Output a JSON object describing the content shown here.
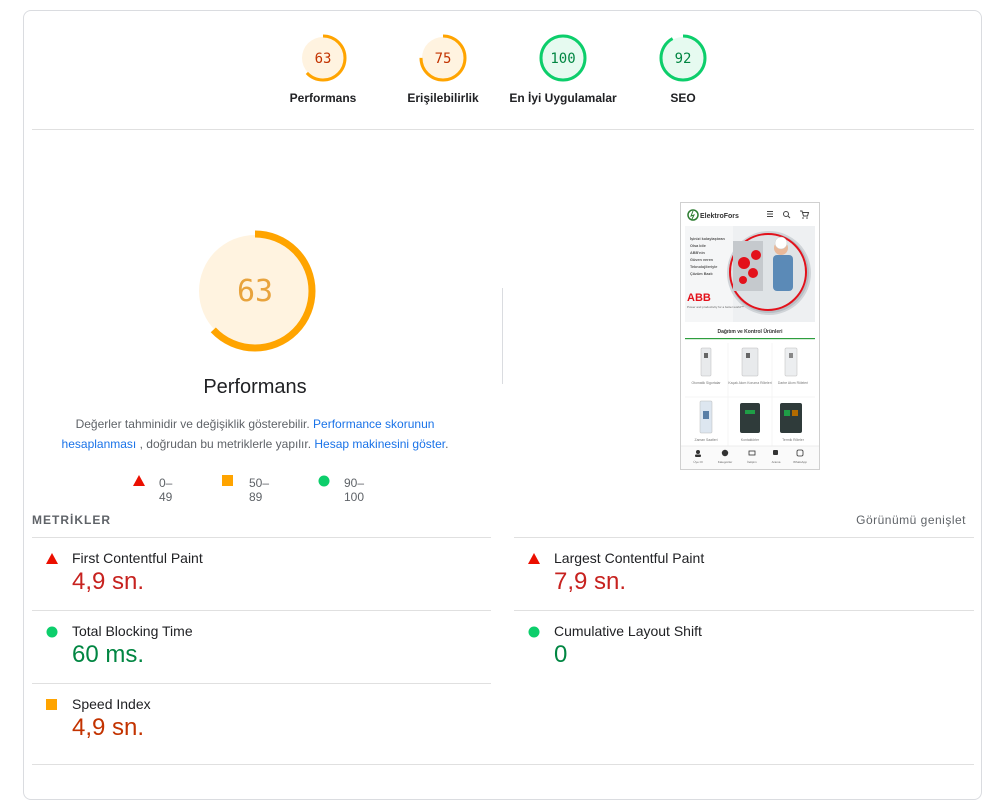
{
  "categories": [
    {
      "score": "63",
      "label": "Performans",
      "value": 63,
      "color": "#ffa400"
    },
    {
      "score": "75",
      "label": "Erişilebilirlik",
      "value": 75,
      "color": "#ffa400"
    },
    {
      "score": "100",
      "label": "En İyi Uygulamalar",
      "value": 100,
      "color": "#0cce6b"
    },
    {
      "score": "92",
      "label": "SEO",
      "value": 92,
      "color": "#0cce6b"
    }
  ],
  "performance": {
    "score": "63",
    "value": 63,
    "title": "Performans",
    "desc_text1": "Değerler tahminidir ve değişiklik gösterebilir. ",
    "desc_link1": "Performance skorunun hesaplanması",
    "desc_text2": " , doğrudan bu metriklerle yapılır. ",
    "desc_link2": "Hesap makinesini göster",
    "desc_text3": "."
  },
  "legend": {
    "fail": "0–49",
    "average": "50–89",
    "pass": "90–100"
  },
  "metrics_section": {
    "title": "METRİKLER",
    "expand_label": "Görünümü genişlet"
  },
  "metrics": [
    {
      "name": "First Contentful Paint",
      "value": "4,9 sn.",
      "status": "fail"
    },
    {
      "name": "Largest Contentful Paint",
      "value": "7,9 sn.",
      "status": "fail"
    },
    {
      "name": "Total Blocking Time",
      "value": "60 ms.",
      "status": "pass"
    },
    {
      "name": "Cumulative Layout Shift",
      "value": "0",
      "status": "pass"
    },
    {
      "name": "Speed Index",
      "value": "4,9 sn.",
      "status": "average"
    }
  ],
  "screenshot": {
    "logo_left": "ElektroFors",
    "logo_right": "",
    "hero_lines": [
      "İşinizi kolaylaştıran",
      "Olsa bile",
      "ABB'nin",
      "Güven veren",
      "Teknolojileriyle",
      "Çözüm Bazlı"
    ],
    "brand": "ABB",
    "tagline": "Power and productivity for a better world™",
    "section_title": "Dağıtım ve Kontrol Ürünleri",
    "products": [
      "Otomatik Sigortalar",
      "Kaçak Akım Koruma Röleleri",
      "Darbe Akım Röleleri",
      "Zaman Saatleri",
      "Kontaktörler",
      "Termik Röleler"
    ],
    "bottom_nav": [
      "Üye Ol",
      "Kategoriler",
      "İletişim",
      "Arama",
      "WhatsApp"
    ]
  },
  "colors": {
    "fail": "#eb0f00",
    "average": "#ffa400",
    "pass": "#0cce6b",
    "fail_text": "#c7221f",
    "average_text": "#c33300",
    "pass_text": "#018642"
  }
}
